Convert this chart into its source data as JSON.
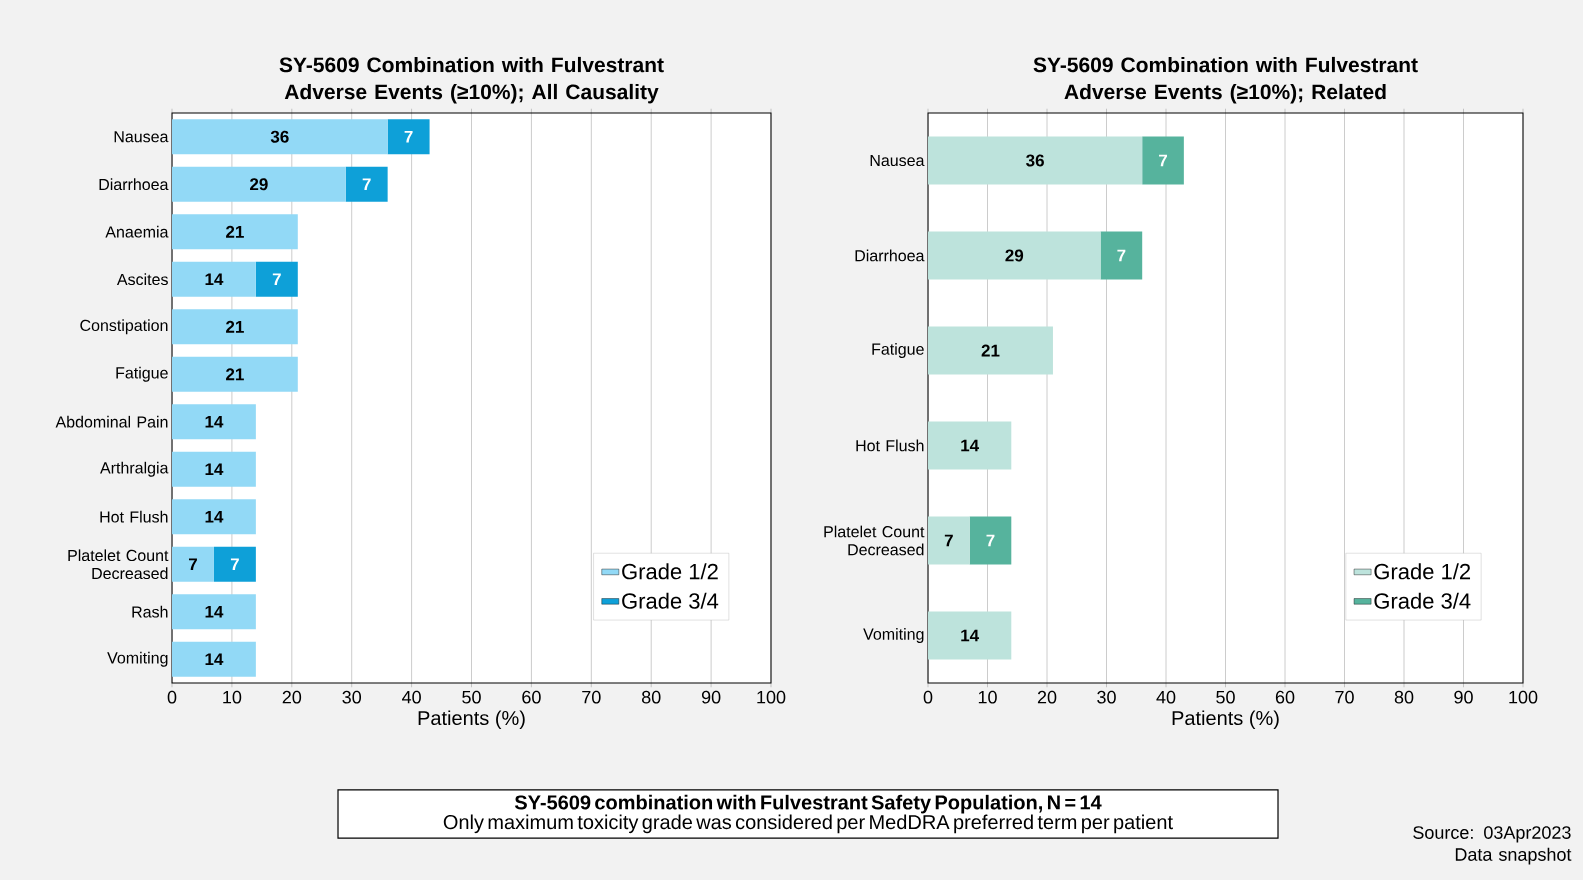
{
  "chart_data": [
    {
      "type": "bar",
      "orientation": "horizontal",
      "stacked": true,
      "title": "SY-5609 Combination with Fulvestrant Adverse Events (≥10%); All Causality",
      "categories": [
        "Nausea",
        "Diarrhoea",
        "Anaemia",
        "Ascites",
        "Constipation",
        "Fatigue",
        "Abdominal Pain",
        "Arthralgia",
        "Hot Flush",
        "Platelet Count Decreased",
        "Rash",
        "Vomiting"
      ],
      "series": [
        {
          "name": "Grade 1/2",
          "color": "#92d9f6",
          "values": [
            36,
            29,
            21,
            14,
            21,
            21,
            14,
            14,
            14,
            7,
            14,
            14
          ]
        },
        {
          "name": "Grade 3/4",
          "color": "#0ea0d8",
          "values": [
            7,
            7,
            null,
            7,
            null,
            null,
            null,
            null,
            null,
            7,
            null,
            null
          ]
        }
      ],
      "xlabel": "Patients (%)",
      "xlim": [
        0,
        100
      ],
      "xticks": [
        0,
        10,
        20,
        30,
        40,
        50,
        60,
        70,
        80,
        90,
        100
      ],
      "grid": "x",
      "legend": "bottom right",
      "data_labels": true,
      "annotations": [
        "SY-5609 combination with Fulvestrant Safety Population, N = 14",
        "Only maximum toxicity grade was considered per MedDRA preferred term per patient",
        "Source: 03Apr2023 Data snapshot"
      ]
    },
    {
      "type": "bar",
      "orientation": "horizontal",
      "stacked": true,
      "title": "SY-5609 Combination with Fulvestrant Adverse Events (≥10%); Related",
      "categories": [
        "Nausea",
        "Diarrhoea",
        "Fatigue",
        "Hot Flush",
        "Platelet Count Decreased",
        "Vomiting"
      ],
      "series": [
        {
          "name": "Grade 1/2",
          "color": "#bde3dc",
          "values": [
            36,
            29,
            21,
            14,
            7,
            14
          ]
        },
        {
          "name": "Grade 3/4",
          "color": "#56b39d",
          "values": [
            7,
            7,
            null,
            null,
            7,
            null
          ]
        }
      ],
      "xlabel": "Patients (%)",
      "xlim": [
        0,
        100
      ],
      "xticks": [
        0,
        10,
        20,
        30,
        40,
        50,
        60,
        70,
        80,
        90,
        100
      ],
      "grid": "x",
      "legend": "bottom right",
      "data_labels": true
    }
  ]
}
